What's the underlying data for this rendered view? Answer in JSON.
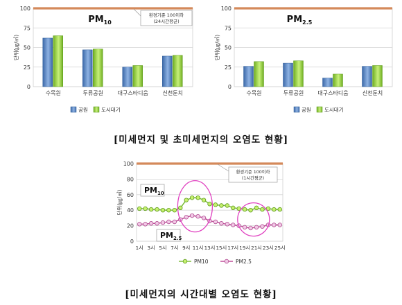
{
  "captions": {
    "c1": "[미세먼지 및 초미세먼지의 오염도 현황]",
    "c2": "[미세먼지의 시간대별 오염도 현황]"
  },
  "colors": {
    "park": "#4f81bd",
    "city": "#9bd23c",
    "standard_line": "#d4895a",
    "pm10_line": "#7fbf3f",
    "pm25_line": "#c04f9a",
    "highlight": "#e040c0"
  },
  "chart_data": [
    {
      "type": "bar",
      "title_main": "PM",
      "title_sub": "10",
      "categories": [
        "수목원",
        "두류공원",
        "대구스타디움",
        "신천둔치"
      ],
      "series": [
        {
          "name": "공원",
          "values": [
            62,
            47,
            25,
            39
          ]
        },
        {
          "name": "도시대기",
          "values": [
            65,
            48,
            27,
            40
          ]
        }
      ],
      "ylabel": "단위(㎍/㎥)",
      "ylim": [
        0,
        100
      ],
      "yticks": [
        0,
        25,
        50,
        75,
        100
      ],
      "standard_value": 100,
      "annotation": [
        "환경기준 100이하",
        "(24시간평균)"
      ],
      "legend": [
        "공원",
        "도시대기"
      ]
    },
    {
      "type": "bar",
      "title_main": "PM",
      "title_sub": "2.5",
      "categories": [
        "수목원",
        "두류공원",
        "대구스타디움",
        "신천둔치"
      ],
      "series": [
        {
          "name": "공원",
          "values": [
            26,
            30,
            11,
            26
          ]
        },
        {
          "name": "도시대기",
          "values": [
            32,
            33,
            16,
            27
          ]
        }
      ],
      "ylabel": "단위(㎍/㎥)",
      "ylim": [
        0,
        100
      ],
      "yticks": [
        0,
        25,
        50,
        75,
        100
      ],
      "standard_value": 100,
      "legend": [
        "공원",
        "도시대기"
      ]
    },
    {
      "type": "line",
      "x": [
        "1시",
        "2시",
        "3시",
        "4시",
        "5시",
        "6시",
        "7시",
        "8시",
        "9시",
        "10시",
        "11시",
        "12시",
        "13시",
        "14시",
        "15시",
        "16시",
        "17시",
        "18시",
        "19시",
        "20시",
        "21시",
        "22시",
        "23시",
        "24시",
        "25시"
      ],
      "xticks": [
        "1시",
        "3시",
        "5시",
        "7시",
        "9시",
        "11시",
        "13시",
        "15시",
        "17시",
        "19시",
        "21시",
        "23시",
        "25시"
      ],
      "series": [
        {
          "name": "PM10",
          "values": [
            42,
            42,
            41,
            41,
            40,
            40,
            40,
            43,
            53,
            56,
            56,
            53,
            48,
            47,
            46,
            46,
            43,
            42,
            41,
            40,
            43,
            41,
            42,
            41,
            41
          ]
        },
        {
          "name": "PM2.5",
          "values": [
            22,
            22,
            23,
            23,
            24,
            25,
            25,
            28,
            31,
            33,
            32,
            30,
            26,
            25,
            23,
            22,
            21,
            20,
            18,
            17,
            18,
            19,
            21,
            21,
            21
          ]
        }
      ],
      "labels": [
        {
          "main": "PM",
          "sub": "10"
        },
        {
          "main": "PM",
          "sub": "2.5"
        }
      ],
      "ylabel": "단위(㎍/㎥)",
      "ylim": [
        0,
        100
      ],
      "yticks": [
        0,
        20,
        40,
        60,
        80,
        100
      ],
      "standard_value": 100,
      "annotation": [
        "환경기준 100이하",
        "(1시간평균)"
      ],
      "legend": [
        "PM10",
        "PM2.5"
      ]
    }
  ]
}
